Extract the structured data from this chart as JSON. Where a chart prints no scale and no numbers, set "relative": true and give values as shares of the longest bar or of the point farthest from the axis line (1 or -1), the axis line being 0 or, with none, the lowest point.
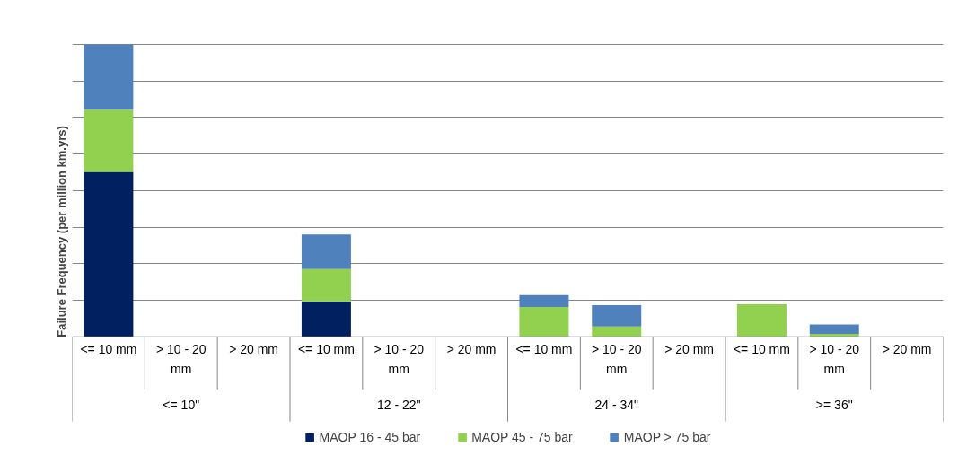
{
  "chart_data": {
    "type": "bar",
    "stacked": true,
    "relative": true,
    "ylabel": "Failure Frequency (per million km.yrs)",
    "categories": [
      "<= 10 mm",
      "> 10 - 20 mm",
      "> 20 mm",
      "<= 10 mm",
      "> 10 - 20 mm",
      "> 20 mm",
      "<= 10 mm",
      "> 10 - 20 mm",
      "> 20 mm",
      "<= 10 mm",
      "> 10 - 20 mm",
      "> 20 mm"
    ],
    "annotations": [
      "<= 10\"",
      "12 - 22\"",
      "24 - 34\"",
      ">= 36\""
    ],
    "series": [
      {
        "name": "MAOP 16 - 45 bar",
        "color": "#002060",
        "values": [
          0.564,
          null,
          null,
          0.121,
          null,
          null,
          null,
          null,
          null,
          null,
          null,
          null
        ]
      },
      {
        "name": "MAOP 45 - 75 bar",
        "color": "#92d050",
        "values": [
          0.213,
          null,
          null,
          0.111,
          null,
          null,
          0.102,
          0.035,
          null,
          0.111,
          0.01,
          null
        ]
      },
      {
        "name": "MAOP > 75 bar",
        "color": "#4f81bd",
        "values": [
          0.223,
          null,
          null,
          0.118,
          null,
          null,
          0.041,
          0.073,
          null,
          null,
          0.032,
          null
        ]
      }
    ],
    "grid": "y",
    "legend": "bottom"
  }
}
